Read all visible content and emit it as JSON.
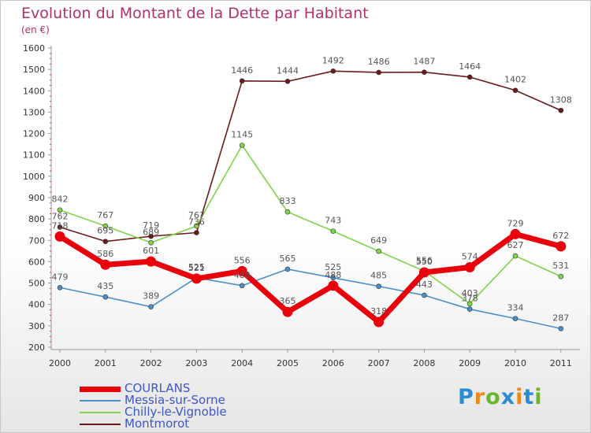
{
  "chart_data": {
    "type": "line",
    "title": "Evolution du Montant de la Dette par Habitant",
    "subtitle": "(en €)",
    "categories": [
      "2000",
      "2001",
      "2002",
      "2003",
      "2004",
      "2005",
      "2006",
      "2007",
      "2008",
      "2009",
      "2010",
      "2011"
    ],
    "ylim": [
      200,
      1600
    ],
    "yticks": [
      200,
      300,
      400,
      500,
      600,
      700,
      800,
      900,
      1000,
      1100,
      1200,
      1300,
      1400,
      1500,
      1600
    ],
    "grid": false,
    "legend_position": "bottom-left",
    "series": [
      {
        "name": "COURLANS",
        "color": "#e8000b",
        "values": [
          718,
          586,
          601,
          521,
          556,
          365,
          488,
          318,
          550,
          574,
          729,
          672
        ]
      },
      {
        "name": "Messia-sur-Sorne",
        "color": "#4a8fc8",
        "values": [
          479,
          435,
          389,
          525,
          488,
          565,
          525,
          485,
          443,
          378,
          334,
          287
        ]
      },
      {
        "name": "Chilly-le-Vignoble",
        "color": "#7ed44a",
        "values": [
          842,
          767,
          689,
          767,
          1145,
          833,
          743,
          649,
          556,
          403,
          627,
          531
        ]
      },
      {
        "name": "Montmorot",
        "color": "#6b1a1a",
        "values": [
          762,
          695,
          719,
          736,
          1446,
          1444,
          1492,
          1486,
          1487,
          1464,
          1402,
          1308
        ]
      }
    ]
  },
  "logo": {
    "text": "Proxiti"
  }
}
